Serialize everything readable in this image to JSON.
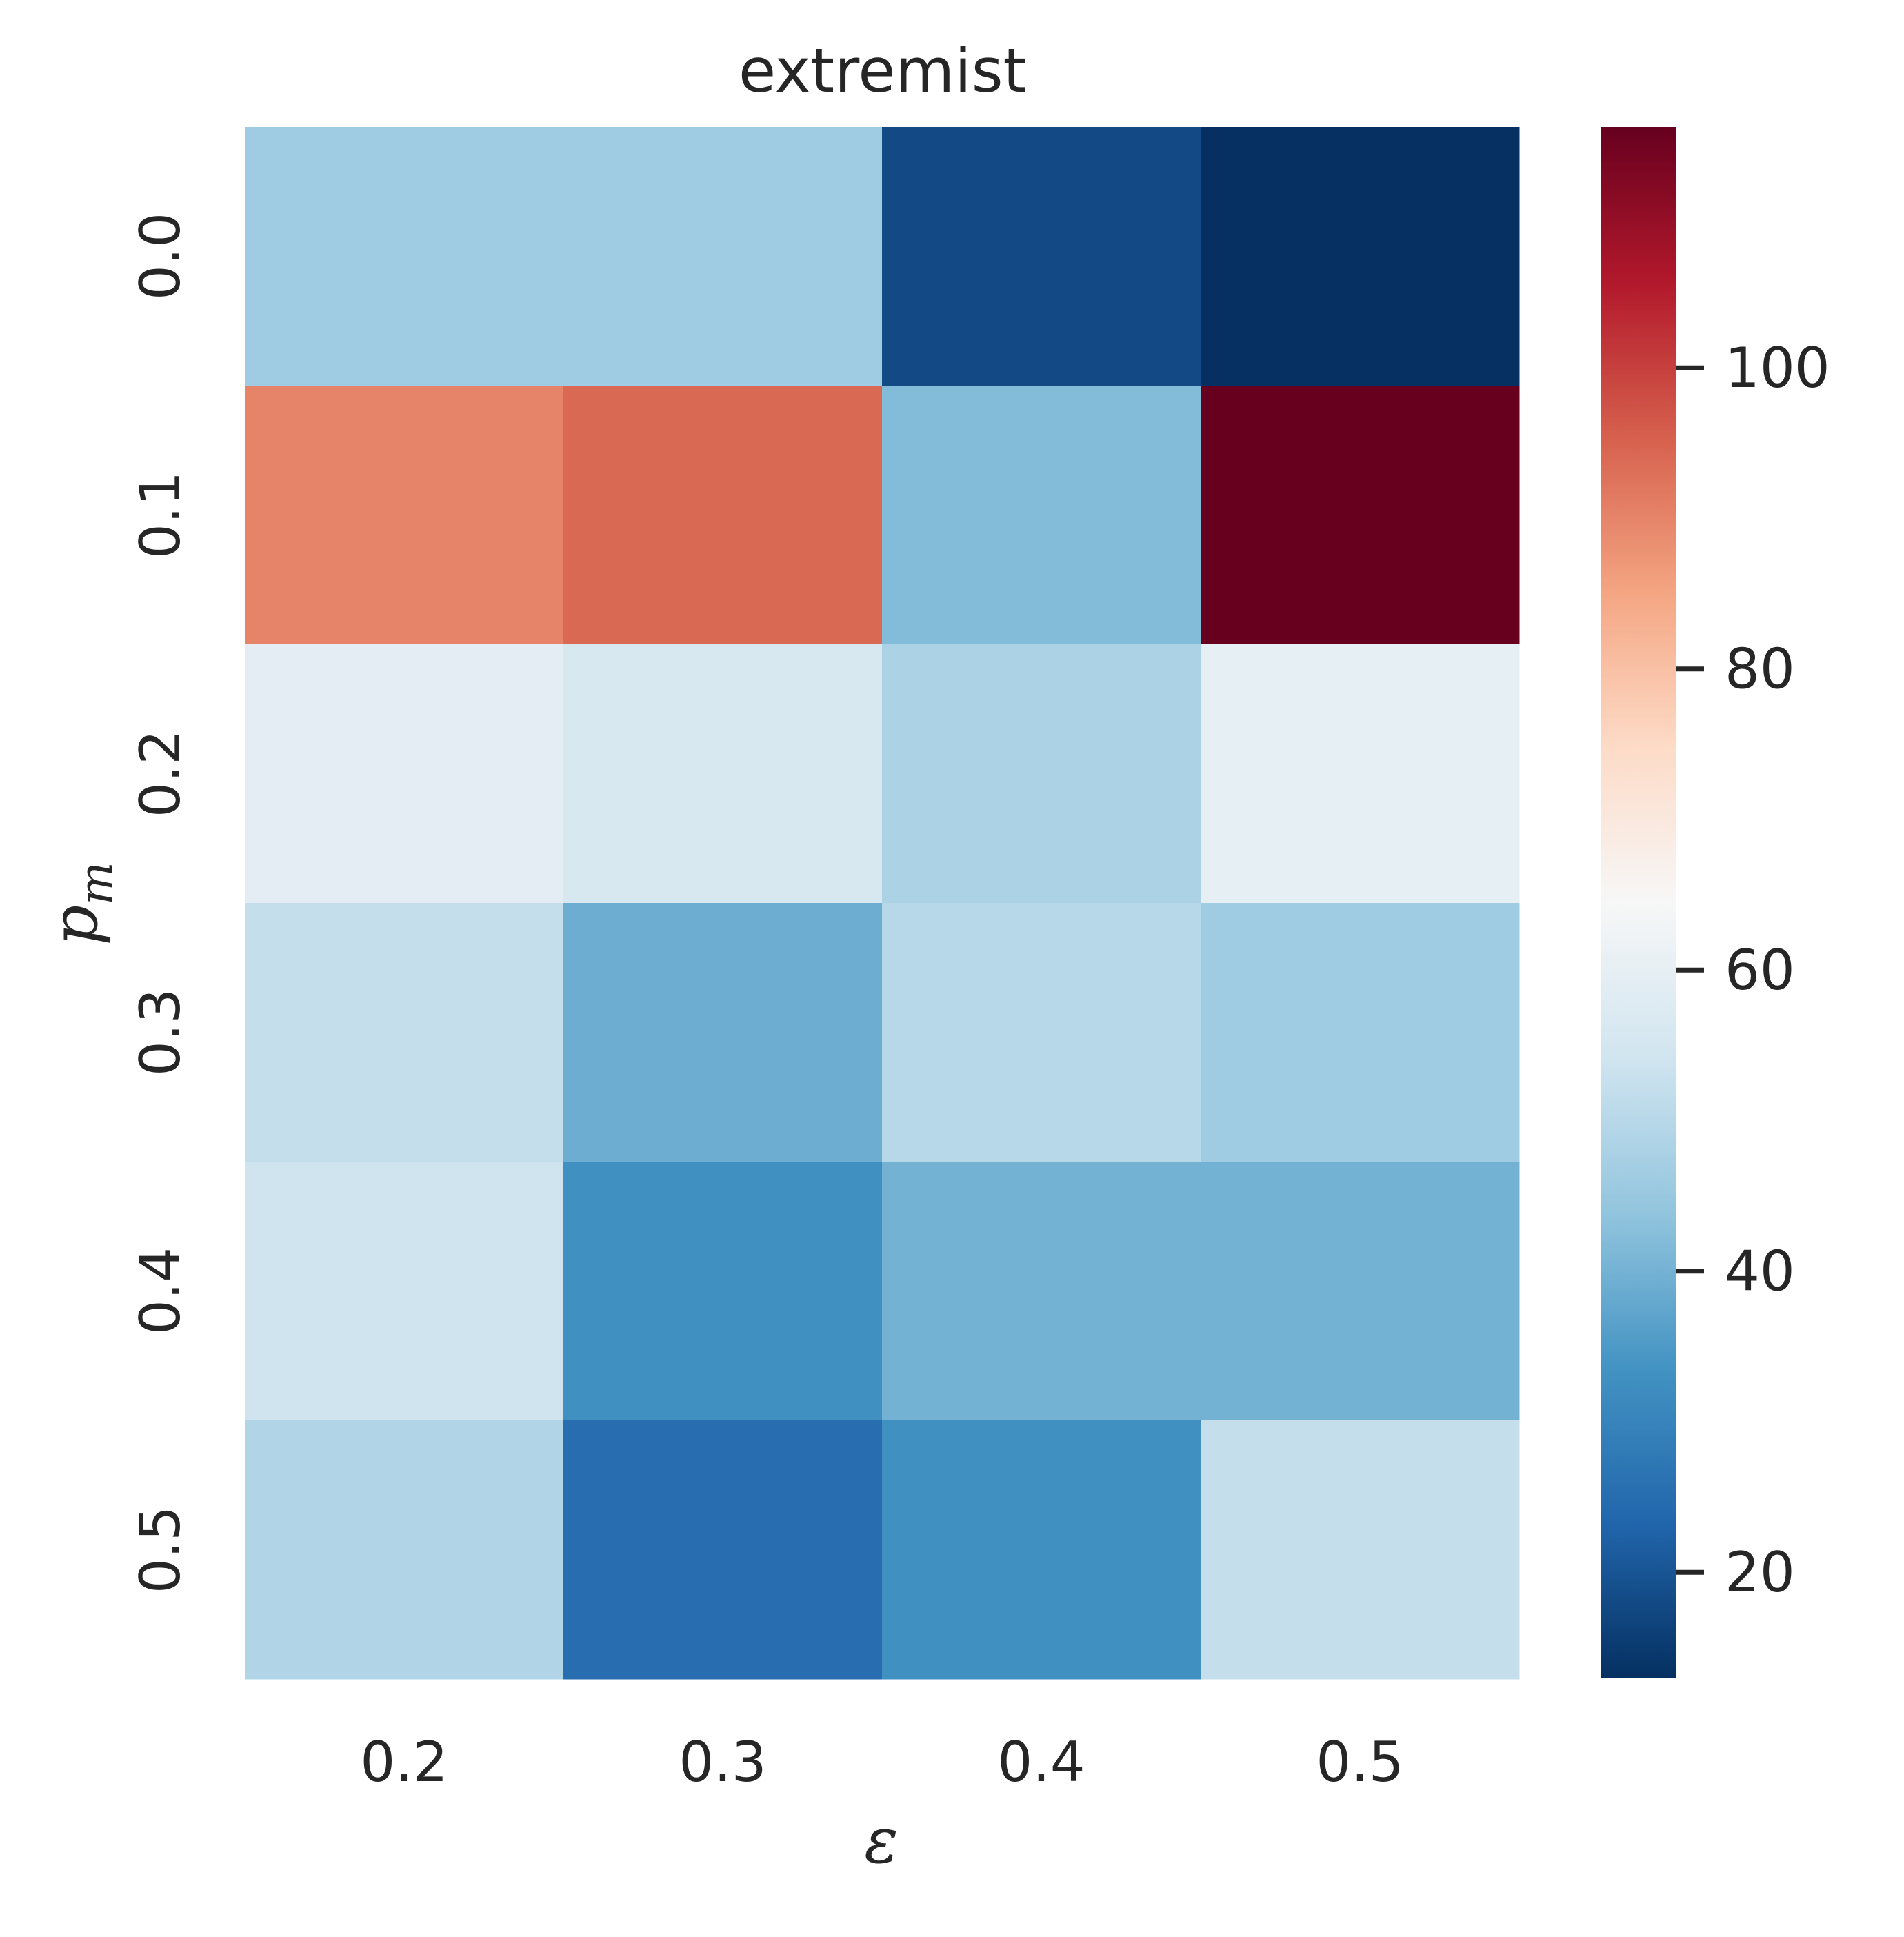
{
  "chart_data": {
    "type": "heatmap",
    "title": "extremist",
    "xlabel": "ε",
    "ylabel": "p",
    "ylabel_subscript": "m",
    "x_categories": [
      "0.2",
      "0.3",
      "0.4",
      "0.5"
    ],
    "y_categories": [
      "0.0",
      "0.1",
      "0.2",
      "0.3",
      "0.4",
      "0.5"
    ],
    "values": [
      [
        46,
        46,
        18,
        13
      ],
      [
        90,
        94,
        42,
        116
      ],
      [
        59,
        56,
        48,
        60
      ],
      [
        52,
        39,
        50,
        46
      ],
      [
        54,
        33,
        40,
        40
      ],
      [
        49,
        25,
        33,
        52
      ]
    ],
    "colormap": "RdBu_r",
    "colorbar": {
      "vmin": 13,
      "vmax": 116,
      "ticks": [
        20,
        40,
        60,
        80,
        100
      ]
    },
    "grid": false
  }
}
